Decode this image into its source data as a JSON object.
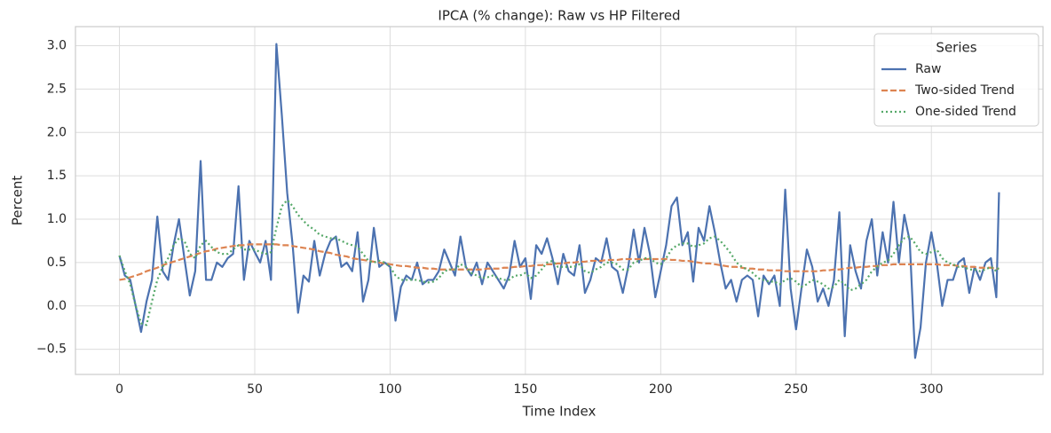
{
  "chart_data": {
    "type": "line",
    "title": "IPCA (% change): Raw vs HP Filtered",
    "xlabel": "Time Index",
    "ylabel": "Percent",
    "x": [
      0,
      2,
      4,
      6,
      8,
      10,
      12,
      14,
      16,
      18,
      20,
      22,
      24,
      26,
      28,
      30,
      32,
      34,
      36,
      38,
      40,
      42,
      44,
      46,
      48,
      50,
      52,
      54,
      56,
      58,
      60,
      62,
      64,
      66,
      68,
      70,
      72,
      74,
      76,
      78,
      80,
      82,
      84,
      86,
      88,
      90,
      92,
      94,
      96,
      98,
      100,
      102,
      104,
      106,
      108,
      110,
      112,
      114,
      116,
      118,
      120,
      122,
      124,
      126,
      128,
      130,
      132,
      134,
      136,
      138,
      140,
      142,
      144,
      146,
      148,
      150,
      152,
      154,
      156,
      158,
      160,
      162,
      164,
      166,
      168,
      170,
      172,
      174,
      176,
      178,
      180,
      182,
      184,
      186,
      188,
      190,
      192,
      194,
      196,
      198,
      200,
      202,
      204,
      206,
      208,
      210,
      212,
      214,
      216,
      218,
      220,
      222,
      224,
      226,
      228,
      230,
      232,
      234,
      236,
      238,
      240,
      242,
      244,
      246,
      248,
      250,
      252,
      254,
      256,
      258,
      260,
      262,
      264,
      266,
      268,
      270,
      272,
      274,
      276,
      278,
      280,
      282,
      284,
      286,
      288,
      290,
      292,
      294,
      296,
      298,
      300,
      302,
      304,
      306,
      308,
      310,
      312,
      314,
      316,
      318,
      320,
      322,
      324,
      325
    ],
    "series": [
      {
        "name": "Raw",
        "color": "#4c72b0",
        "dash": "solid",
        "values": [
          0.58,
          0.35,
          0.3,
          0.0,
          -0.3,
          0.05,
          0.3,
          1.03,
          0.4,
          0.3,
          0.7,
          1.0,
          0.55,
          0.12,
          0.4,
          1.67,
          0.3,
          0.3,
          0.5,
          0.45,
          0.55,
          0.6,
          1.38,
          0.3,
          0.75,
          0.62,
          0.5,
          0.75,
          0.3,
          3.02,
          2.2,
          1.3,
          0.7,
          -0.08,
          0.35,
          0.28,
          0.75,
          0.35,
          0.6,
          0.75,
          0.8,
          0.45,
          0.5,
          0.4,
          0.85,
          0.05,
          0.3,
          0.9,
          0.45,
          0.5,
          0.45,
          -0.17,
          0.22,
          0.35,
          0.3,
          0.5,
          0.25,
          0.3,
          0.3,
          0.4,
          0.65,
          0.5,
          0.35,
          0.8,
          0.45,
          0.35,
          0.5,
          0.25,
          0.5,
          0.4,
          0.3,
          0.2,
          0.35,
          0.75,
          0.45,
          0.55,
          0.08,
          0.7,
          0.6,
          0.78,
          0.55,
          0.25,
          0.6,
          0.4,
          0.35,
          0.7,
          0.15,
          0.3,
          0.55,
          0.5,
          0.78,
          0.45,
          0.4,
          0.15,
          0.45,
          0.88,
          0.5,
          0.9,
          0.6,
          0.1,
          0.4,
          0.7,
          1.15,
          1.25,
          0.7,
          0.85,
          0.28,
          0.9,
          0.75,
          1.15,
          0.85,
          0.5,
          0.2,
          0.3,
          0.05,
          0.3,
          0.35,
          0.3,
          -0.12,
          0.35,
          0.25,
          0.35,
          0.0,
          1.34,
          0.2,
          -0.27,
          0.2,
          0.65,
          0.45,
          0.05,
          0.2,
          0.0,
          0.3,
          1.08,
          -0.35,
          0.7,
          0.4,
          0.2,
          0.75,
          1.0,
          0.35,
          0.85,
          0.5,
          1.2,
          0.5,
          1.05,
          0.75,
          -0.6,
          -0.25,
          0.5,
          0.85,
          0.5,
          0.0,
          0.3,
          0.3,
          0.5,
          0.55,
          0.15,
          0.45,
          0.3,
          0.5,
          0.55,
          0.1,
          1.31
        ]
      },
      {
        "name": "Two-sided Trend",
        "color": "#dd8452",
        "dash": "dashed",
        "values": [
          0.3,
          0.31,
          0.33,
          0.35,
          0.37,
          0.4,
          0.42,
          0.44,
          0.47,
          0.49,
          0.51,
          0.53,
          0.55,
          0.57,
          0.59,
          0.61,
          0.63,
          0.64,
          0.66,
          0.67,
          0.68,
          0.69,
          0.7,
          0.7,
          0.71,
          0.71,
          0.71,
          0.71,
          0.71,
          0.71,
          0.7,
          0.7,
          0.69,
          0.68,
          0.67,
          0.66,
          0.65,
          0.63,
          0.62,
          0.61,
          0.59,
          0.58,
          0.57,
          0.55,
          0.54,
          0.53,
          0.52,
          0.51,
          0.5,
          0.49,
          0.48,
          0.47,
          0.46,
          0.46,
          0.45,
          0.44,
          0.44,
          0.43,
          0.43,
          0.42,
          0.42,
          0.42,
          0.42,
          0.42,
          0.42,
          0.42,
          0.42,
          0.42,
          0.43,
          0.43,
          0.43,
          0.44,
          0.44,
          0.45,
          0.45,
          0.46,
          0.46,
          0.47,
          0.47,
          0.48,
          0.48,
          0.49,
          0.49,
          0.5,
          0.5,
          0.51,
          0.51,
          0.52,
          0.52,
          0.52,
          0.53,
          0.53,
          0.53,
          0.54,
          0.54,
          0.54,
          0.54,
          0.54,
          0.54,
          0.54,
          0.54,
          0.54,
          0.53,
          0.53,
          0.52,
          0.52,
          0.51,
          0.5,
          0.49,
          0.49,
          0.48,
          0.47,
          0.46,
          0.45,
          0.45,
          0.44,
          0.43,
          0.43,
          0.42,
          0.42,
          0.41,
          0.41,
          0.41,
          0.4,
          0.4,
          0.4,
          0.4,
          0.4,
          0.4,
          0.4,
          0.41,
          0.41,
          0.42,
          0.42,
          0.43,
          0.44,
          0.44,
          0.45,
          0.45,
          0.46,
          0.46,
          0.47,
          0.47,
          0.48,
          0.48,
          0.48,
          0.48,
          0.48,
          0.48,
          0.48,
          0.48,
          0.48,
          0.47,
          0.47,
          0.47,
          0.46,
          0.46,
          0.45,
          0.45,
          0.44,
          0.44,
          0.44,
          0.43,
          0.43
        ]
      },
      {
        "name": "One-sided Trend",
        "color": "#55a868",
        "dash": "dotted",
        "values": [
          0.58,
          0.4,
          0.25,
          0.0,
          -0.2,
          -0.22,
          0.05,
          0.3,
          0.45,
          0.55,
          0.7,
          0.78,
          0.75,
          0.6,
          0.55,
          0.7,
          0.75,
          0.68,
          0.62,
          0.6,
          0.6,
          0.65,
          0.7,
          0.65,
          0.65,
          0.65,
          0.62,
          0.6,
          0.62,
          0.9,
          1.15,
          1.22,
          1.15,
          1.05,
          0.98,
          0.92,
          0.88,
          0.82,
          0.8,
          0.78,
          0.78,
          0.75,
          0.72,
          0.7,
          0.68,
          0.6,
          0.52,
          0.5,
          0.52,
          0.5,
          0.45,
          0.35,
          0.3,
          0.3,
          0.3,
          0.3,
          0.28,
          0.27,
          0.28,
          0.32,
          0.4,
          0.42,
          0.42,
          0.48,
          0.45,
          0.38,
          0.35,
          0.32,
          0.33,
          0.35,
          0.32,
          0.3,
          0.3,
          0.35,
          0.35,
          0.38,
          0.32,
          0.35,
          0.42,
          0.5,
          0.52,
          0.45,
          0.45,
          0.45,
          0.45,
          0.48,
          0.4,
          0.38,
          0.42,
          0.45,
          0.5,
          0.5,
          0.48,
          0.42,
          0.42,
          0.5,
          0.52,
          0.55,
          0.55,
          0.5,
          0.48,
          0.55,
          0.65,
          0.7,
          0.72,
          0.72,
          0.68,
          0.7,
          0.72,
          0.78,
          0.8,
          0.75,
          0.68,
          0.6,
          0.5,
          0.45,
          0.42,
          0.38,
          0.32,
          0.3,
          0.28,
          0.28,
          0.25,
          0.3,
          0.32,
          0.28,
          0.22,
          0.25,
          0.3,
          0.28,
          0.25,
          0.2,
          0.22,
          0.3,
          0.25,
          0.18,
          0.2,
          0.25,
          0.3,
          0.4,
          0.45,
          0.5,
          0.52,
          0.6,
          0.7,
          0.78,
          0.8,
          0.72,
          0.62,
          0.6,
          0.62,
          0.65,
          0.55,
          0.5,
          0.48,
          0.45,
          0.45,
          0.42,
          0.42,
          0.4,
          0.42,
          0.45,
          0.4,
          0.45
        ]
      }
    ],
    "xlim": [
      -16.25,
      341.25
    ],
    "xticks": [
      0,
      50,
      100,
      150,
      200,
      250,
      300
    ],
    "ylim": [
      -0.79,
      3.22
    ],
    "yticks": [
      {
        "value": -0.5,
        "label": "−0.5"
      },
      {
        "value": 0,
        "label": "0.0"
      },
      0.5,
      {
        "value": 1,
        "label": "1.0"
      },
      1.5,
      {
        "value": 2,
        "label": "2.0"
      },
      2.5,
      {
        "value": 3,
        "label": "3.0"
      }
    ],
    "grid": true,
    "legend_title": "Series",
    "legend": "upper right"
  }
}
